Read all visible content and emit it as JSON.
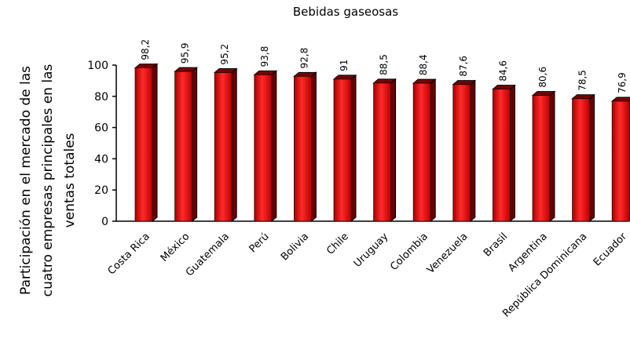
{
  "chart_data": {
    "type": "bar",
    "title": "Bebidas gaseosas",
    "y_label": [
      "Participación en el mercado de las",
      "cuatro empresas principales en las",
      "ventas totales"
    ],
    "categories": [
      "Costa Rica",
      "México",
      "Guatemala",
      "Perú",
      "Bolivia",
      "Chile",
      "Uruguay",
      "Colombia",
      "Venezuela",
      "Brasil",
      "Argentina",
      "República Dominicana",
      "Ecuador"
    ],
    "values": [
      98.2,
      95.9,
      95.2,
      93.8,
      92.8,
      91,
      88.5,
      88.4,
      87.6,
      84.6,
      80.6,
      78.5,
      76.9
    ],
    "value_labels": [
      "98,2",
      "95,9",
      "95,2",
      "93,8",
      "92,8",
      "91",
      "88,5",
      "88,4",
      "87,6",
      "84,6",
      "80,6",
      "78,5",
      "76,9"
    ],
    "color": "#e8141b",
    "ylim": [
      0,
      100
    ],
    "yticks": [
      0,
      20,
      40,
      60,
      80,
      100
    ]
  }
}
